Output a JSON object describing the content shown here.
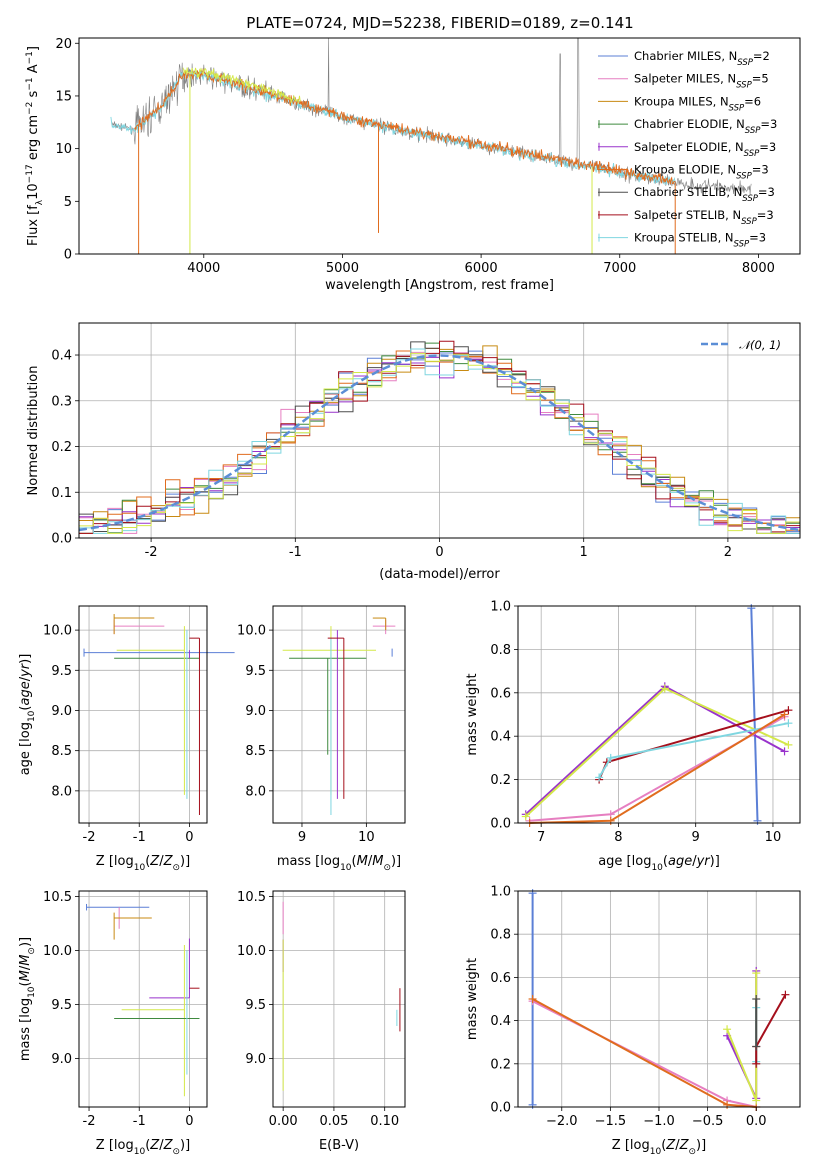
{
  "title": "PLATE=0724, MJD=52238, FIBERID=0189, z=0.141",
  "colors": {
    "Chabrier MILES": "#5b7fd6",
    "Salpeter MILES": "#e67fc1",
    "Kroupa MILES": "#c88a12",
    "Chabrier ELODIE": "#3f8a3f",
    "Salpeter ELODIE": "#9933cc",
    "Kroupa ELODIE": "#e06c1e",
    "Chabrier STELIB": "#4d4d4d",
    "Salpeter STELIB": "#a50f1c",
    "Kroupa STELIB": "#7fd6e0",
    "data": "#808080",
    "yellowgreen": "#d4e84a",
    "normal": "#5b8ed6"
  },
  "legend_spectrum": [
    {
      "label": "Chabrier MILES, N",
      "sub": "SSP",
      "eq": "=2",
      "color": "#5b7fd6"
    },
    {
      "label": "Salpeter MILES, N",
      "sub": "SSP",
      "eq": "=5",
      "color": "#e67fc1"
    },
    {
      "label": "Kroupa MILES, N",
      "sub": "SSP",
      "eq": "=6",
      "color": "#c88a12"
    },
    {
      "label": "Chabrier ELODIE, N",
      "sub": "SSP",
      "eq": "=3",
      "color": "#3f8a3f"
    },
    {
      "label": "Salpeter ELODIE, N",
      "sub": "SSP",
      "eq": "=3",
      "color": "#9933cc"
    },
    {
      "label": "Kroupa ELODIE, N",
      "sub": "SSP",
      "eq": "=3",
      "color": "#e06c1e"
    },
    {
      "label": "Chabrier STELIB, N",
      "sub": "SSP",
      "eq": "=3",
      "color": "#4d4d4d"
    },
    {
      "label": "Salpeter STELIB, N",
      "sub": "SSP",
      "eq": "=3",
      "color": "#a50f1c"
    },
    {
      "label": "Kroupa STELIB, N",
      "sub": "SSP",
      "eq": "=3",
      "color": "#7fd6e0"
    }
  ],
  "legend_hist": {
    "label": "𝒩(0, 1)"
  },
  "chart_data": [
    {
      "id": "spectrum",
      "type": "line",
      "xlabel": "wavelength [Angstrom, rest frame]",
      "ylabel": "Flux [f_λ 10^-17 erg cm^-2 s^-1 A^-1]",
      "xlim": [
        3100,
        8300
      ],
      "ylim": [
        0,
        20.5
      ],
      "xticks": [
        4000,
        5000,
        6000,
        7000,
        8000
      ],
      "yticks": [
        0,
        5,
        10,
        15,
        20
      ],
      "model_curve": {
        "x": [
          3330,
          3500,
          3700,
          3850,
          4000,
          4200,
          4500,
          5000,
          5500,
          6000,
          6500,
          7000,
          7200,
          7400
        ],
        "y": [
          12.3,
          11.8,
          14,
          17,
          17,
          16.2,
          15,
          13,
          11.5,
          10.3,
          9,
          7.8,
          7.2,
          6.8
        ]
      },
      "data_curve": {
        "x_start": 3340,
        "x_end": 7950
      },
      "grid": false,
      "legend_position": "upper right"
    },
    {
      "id": "residuals",
      "type": "line",
      "xlabel": "(data-model)/error",
      "ylabel": "Normed distribution",
      "xlim": [
        -2.5,
        2.5
      ],
      "ylim": [
        0,
        0.47
      ],
      "xticks": [
        -2,
        -1,
        0,
        1,
        2
      ],
      "yticks": [
        0,
        0.1,
        0.2,
        0.3,
        0.4
      ],
      "normal_series": {
        "name": "𝒩(0, 1)",
        "mean": 0,
        "sigma": 1
      },
      "grid": true,
      "legend_position": "upper right"
    },
    {
      "id": "age_vs_Z",
      "type": "scatter",
      "xlabel": "Z [log10(Z/Z⊙)]",
      "ylabel": "age [log10(age/yr)]",
      "xlim": [
        -2.2,
        0.35
      ],
      "ylim": [
        7.6,
        10.3
      ],
      "xticks": [
        -2,
        -1,
        0
      ],
      "yticks": [
        8.0,
        8.5,
        9.0,
        9.5,
        10.0
      ],
      "points": [
        {
          "c": "#5b7fd6",
          "x": -2.1,
          "xerr": [
            0,
            3
          ],
          "y": 9.72,
          "yerr": [
            0.05,
            0.05
          ]
        },
        {
          "c": "#e67fc1",
          "x": -1.5,
          "xerr": [
            0,
            1
          ],
          "y": 10.05,
          "yerr": [
            0.1,
            0.08
          ]
        },
        {
          "c": "#c88a12",
          "x": -1.5,
          "xerr": [
            0,
            0.8
          ],
          "y": 10.15,
          "yerr": [
            0.2,
            0.05
          ]
        },
        {
          "c": "#3f8a3f",
          "x": 0.2,
          "xerr": [
            1.7,
            0
          ],
          "y": 9.65,
          "yerr": [
            0,
            0
          ]
        },
        {
          "c": "#d4e84a",
          "x": -0.1,
          "xerr": [
            1.35,
            0
          ],
          "y": 9.75,
          "yerr": [
            1.8,
            0.3
          ]
        },
        {
          "c": "#7fd6e0",
          "x": -0.05,
          "xerr": [
            0,
            0
          ],
          "y": 9.9,
          "yerr": [
            2,
            0.1
          ]
        },
        {
          "c": "#a50f1c",
          "x": 0.2,
          "xerr": [
            0.2,
            0
          ],
          "y": 9.9,
          "yerr": [
            2.2,
            0
          ]
        },
        {
          "c": "#9933cc",
          "x": 0,
          "xerr": [
            0,
            0
          ],
          "y": 9.65,
          "yerr": [
            0,
            0.1
          ]
        }
      ]
    },
    {
      "id": "age_vs_mass",
      "type": "scatter",
      "xlabel": "mass [log10(M/M⊙)]",
      "ylabel": "",
      "xlim": [
        8.55,
        10.6
      ],
      "ylim": [
        7.6,
        10.3
      ],
      "xticks": [
        9,
        10
      ],
      "yticks": [
        8.0,
        8.5,
        9.0,
        9.5,
        10.0
      ],
      "points": [
        {
          "c": "#5b7fd6",
          "x": 10.4,
          "xerr": [
            0,
            0
          ],
          "y": 9.72,
          "yerr": [
            0.05,
            0.05
          ]
        },
        {
          "c": "#e67fc1",
          "x": 10.3,
          "xerr": [
            0.2,
            0.15
          ],
          "y": 10.05,
          "yerr": [
            0.1,
            0.08
          ]
        },
        {
          "c": "#c88a12",
          "x": 10.3,
          "xerr": [
            0.2,
            0
          ],
          "y": 10.15,
          "yerr": [
            0.15,
            0
          ]
        },
        {
          "c": "#d4e84a",
          "x": 9.45,
          "xerr": [
            0.75,
            0.7
          ],
          "y": 9.75,
          "yerr": [
            1.8,
            0.3
          ]
        },
        {
          "c": "#3f8a3f",
          "x": 9.4,
          "xerr": [
            0.6,
            0.6
          ],
          "y": 9.65,
          "yerr": [
            1.2,
            0
          ]
        },
        {
          "c": "#7fd6e0",
          "x": 9.45,
          "xerr": [
            0,
            0
          ],
          "y": 9.9,
          "yerr": [
            2.2,
            0
          ]
        },
        {
          "c": "#9933cc",
          "x": 9.55,
          "xerr": [
            0,
            0
          ],
          "y": 10.0,
          "yerr": [
            2.1,
            0
          ]
        },
        {
          "c": "#a50f1c",
          "x": 9.65,
          "xerr": [
            0.25,
            0
          ],
          "y": 9.9,
          "yerr": [
            2.0,
            0
          ]
        }
      ]
    },
    {
      "id": "weight_vs_age",
      "type": "line",
      "xlabel": "age [log10(age/yr)]",
      "ylabel": "mass weight",
      "xlim": [
        6.7,
        10.35
      ],
      "ylim": [
        0,
        1
      ],
      "xticks": [
        7,
        8,
        9,
        10
      ],
      "yticks": [
        0,
        0.2,
        0.4,
        0.6,
        0.8,
        1.0
      ],
      "series": [
        {
          "c": "#5b7fd6",
          "x": [
            9.72,
            9.8
          ],
          "y": [
            0.99,
            0.01
          ]
        },
        {
          "c": "#9933cc",
          "x": [
            6.8,
            8.6,
            10.15
          ],
          "y": [
            0.04,
            0.63,
            0.33
          ]
        },
        {
          "c": "#d4e84a",
          "x": [
            6.8,
            8.6,
            10.2
          ],
          "y": [
            0.03,
            0.62,
            0.36
          ]
        },
        {
          "c": "#a50f1c",
          "x": [
            7.75,
            7.85,
            10.2
          ],
          "y": [
            0.2,
            0.28,
            0.52
          ]
        },
        {
          "c": "#7fd6e0",
          "x": [
            7.75,
            7.9,
            10.2
          ],
          "y": [
            0.21,
            0.3,
            0.46
          ]
        },
        {
          "c": "#e67fc1",
          "x": [
            6.85,
            7.9,
            10.15
          ],
          "y": [
            0.01,
            0.04,
            0.49
          ]
        },
        {
          "c": "#e06c1e",
          "x": [
            6.85,
            7.9,
            10.15
          ],
          "y": [
            0.0,
            0.01,
            0.5
          ]
        }
      ]
    },
    {
      "id": "mass_vs_Z",
      "type": "scatter",
      "xlabel": "Z [log10(Z/Z⊙)]",
      "ylabel": "mass [log10(M/M⊙)]",
      "xlim": [
        -2.2,
        0.35
      ],
      "ylim": [
        8.55,
        10.55
      ],
      "xticks": [
        -2,
        -1,
        0
      ],
      "yticks": [
        9.0,
        9.5,
        10.0,
        10.5
      ],
      "points": [
        {
          "c": "#5b7fd6",
          "x": -2.05,
          "xerr": [
            0,
            1.25
          ],
          "y": 10.4,
          "yerr": [
            0.03,
            0.03
          ]
        },
        {
          "c": "#e67fc1",
          "x": -1.4,
          "xerr": [
            0,
            0.5
          ],
          "y": 10.3,
          "yerr": [
            0.1,
            0.1
          ]
        },
        {
          "c": "#c88a12",
          "x": -1.5,
          "xerr": [
            0,
            0.75
          ],
          "y": 10.3,
          "yerr": [
            0.2,
            0.05
          ]
        },
        {
          "c": "#9933cc",
          "x": 0,
          "xerr": [
            0.8,
            0
          ],
          "y": 9.56,
          "yerr": [
            0,
            0.55
          ]
        },
        {
          "c": "#a50f1c",
          "x": 0.2,
          "xerr": [
            0.2,
            0
          ],
          "y": 9.65,
          "yerr": [
            0,
            0.0
          ]
        },
        {
          "c": "#d4e84a",
          "x": -0.1,
          "xerr": [
            1.25,
            0
          ],
          "y": 9.45,
          "yerr": [
            0.8,
            0.6
          ]
        },
        {
          "c": "#3f8a3f",
          "x": 0.2,
          "xerr": [
            1.7,
            0
          ],
          "y": 9.37,
          "yerr": [
            0,
            0
          ]
        },
        {
          "c": "#7fd6e0",
          "x": -0.05,
          "xerr": [
            0,
            0
          ],
          "y": 9.45,
          "yerr": [
            0.6,
            0.55
          ]
        }
      ]
    },
    {
      "id": "mass_vs_EBV",
      "type": "scatter",
      "xlabel": "E(B-V)",
      "ylabel": "",
      "xlim": [
        -0.01,
        0.12
      ],
      "ylim": [
        8.55,
        10.55
      ],
      "xticks": [
        0.0,
        0.05,
        0.1
      ],
      "yticks": [
        9.0,
        9.5,
        10.0,
        10.5
      ],
      "points": [
        {
          "c": "#e67fc1",
          "x": 0,
          "xerr": [
            0,
            0
          ],
          "y": 10.3,
          "yerr": [
            0.15,
            0.15
          ]
        },
        {
          "c": "#9933cc",
          "x": 0,
          "xerr": [
            0,
            0
          ],
          "y": 10.1,
          "yerr": [
            0.3,
            0
          ]
        },
        {
          "c": "#d4e84a",
          "x": 0,
          "xerr": [
            0,
            0
          ],
          "y": 9.5,
          "yerr": [
            0.8,
            0.6
          ]
        },
        {
          "c": "#7fd6e0",
          "x": 0.112,
          "xerr": [
            0,
            0
          ],
          "y": 9.4,
          "yerr": [
            0.1,
            0.05
          ]
        },
        {
          "c": "#a50f1c",
          "x": 0.115,
          "xerr": [
            0,
            0
          ],
          "y": 9.45,
          "yerr": [
            0.2,
            0.2
          ]
        }
      ]
    },
    {
      "id": "weight_vs_Z",
      "type": "line",
      "xlabel": "Z [log10(Z/Z⊙)]",
      "ylabel": "mass weight",
      "xlim": [
        -2.45,
        0.45
      ],
      "ylim": [
        0,
        1
      ],
      "xticks": [
        -2.0,
        -1.5,
        -1.0,
        -0.5,
        0.0
      ],
      "yticks": [
        0,
        0.2,
        0.4,
        0.6,
        0.8,
        1.0
      ],
      "series": [
        {
          "c": "#5b7fd6",
          "x": [
            -2.3,
            -2.3
          ],
          "y": [
            0.99,
            0.01
          ]
        },
        {
          "c": "#e67fc1",
          "x": [
            -2.3,
            -0.3,
            0
          ],
          "y": [
            0.49,
            0.03,
            0.0
          ]
        },
        {
          "c": "#e06c1e",
          "x": [
            -2.3,
            -0.3,
            0
          ],
          "y": [
            0.5,
            0.01,
            0.0
          ]
        },
        {
          "c": "#9933cc",
          "x": [
            -0.3,
            0,
            0
          ],
          "y": [
            0.33,
            0.04,
            0.63
          ]
        },
        {
          "c": "#d4e84a",
          "x": [
            -0.3,
            0,
            0
          ],
          "y": [
            0.36,
            0.03,
            0.62
          ]
        },
        {
          "c": "#7fd6e0",
          "x": [
            0,
            0
          ],
          "y": [
            0.46,
            0.21
          ]
        },
        {
          "c": "#a50f1c",
          "x": [
            0,
            0,
            0.3
          ],
          "y": [
            0.2,
            0.28,
            0.52
          ]
        },
        {
          "c": "#4d4d4d",
          "x": [
            0,
            0
          ],
          "y": [
            0.5,
            0.28
          ]
        }
      ]
    }
  ]
}
